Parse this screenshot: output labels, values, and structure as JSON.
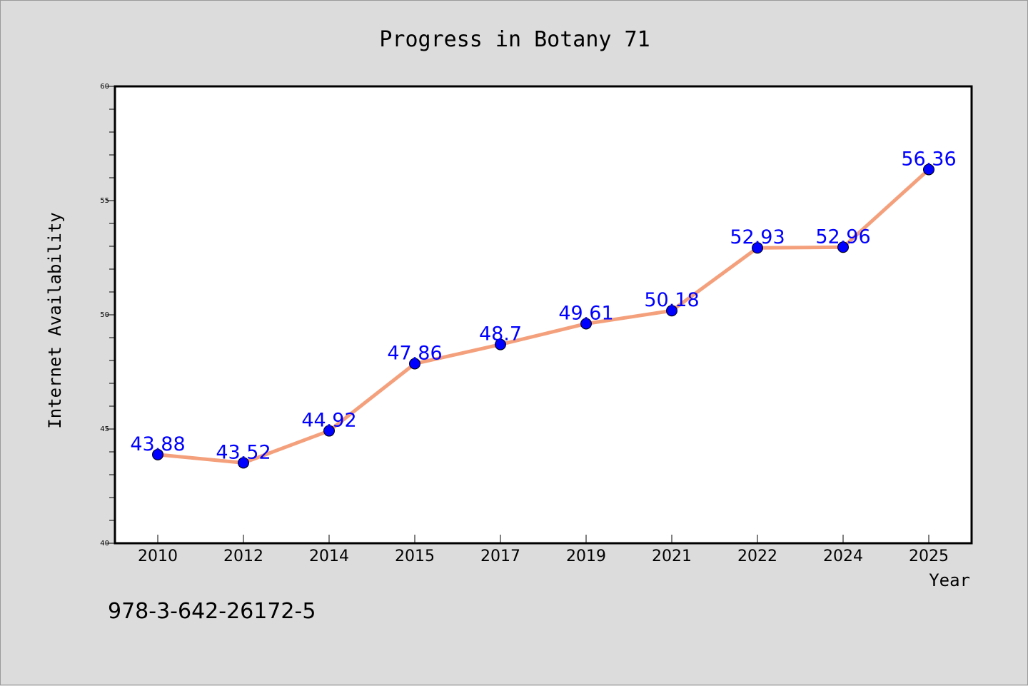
{
  "chart_data": {
    "type": "line",
    "title": "Progress in Botany 71",
    "xlabel": "Year",
    "ylabel": "Internet Availability",
    "categories": [
      "2010",
      "2012",
      "2014",
      "2015",
      "2017",
      "2019",
      "2021",
      "2022",
      "2024",
      "2025"
    ],
    "series": [
      {
        "values": [
          43.88,
          43.52,
          44.92,
          47.86,
          48.7,
          49.61,
          50.18,
          52.93,
          52.96,
          56.36
        ],
        "line_color": "#f4a07c",
        "marker_color": "#0000ff",
        "label_color": "#0000ff"
      }
    ],
    "data_labels": [
      "43.88",
      "43.52",
      "44.92",
      "47.86",
      "48.7",
      "49.61",
      "50.18",
      "52.93",
      "52.96",
      "56.36"
    ],
    "ylim": [
      40,
      60
    ],
    "yticks": [
      40,
      45,
      50,
      55,
      60
    ],
    "ytick_labels": [
      "40",
      "45",
      "50",
      "55",
      "60"
    ],
    "grid": false,
    "legend": "none"
  },
  "footer_text": "978-3-642-26172-5"
}
